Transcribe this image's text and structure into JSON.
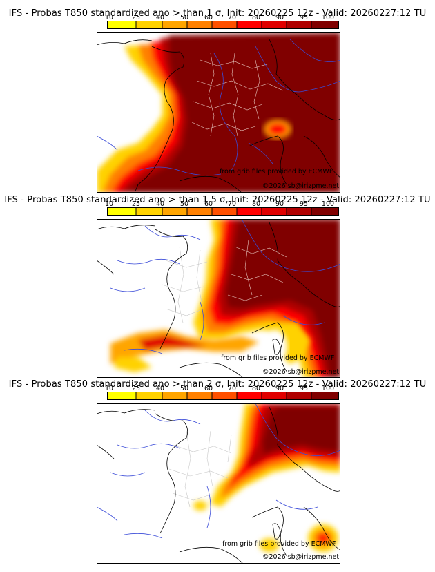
{
  "panels": [
    {
      "title": "IFS - Probas T850  standardized ano > than 1 σ, Init: 20260225 12z - Valid: 20260227:12 TU",
      "threshold_sigma": 1,
      "source_note": "from grib files provided by ECMWF",
      "copyright": "©2026 sb@irizpme.net"
    },
    {
      "title": "IFS - Probas T850  standardized ano > than 1.5 σ, Init: 20260225 12z - Valid: 20260227:12 TU",
      "threshold_sigma": 1.5,
      "source_note": "from grib files provided by ECMWF",
      "copyright": "©2026 sb@irizpme.net"
    },
    {
      "title": "IFS - Probas T850  standardized ano > than 2 σ, Init: 20260225 12z - Valid: 20260227:12 TU",
      "threshold_sigma": 2,
      "source_note": "from grib files provided by ECMWF",
      "copyright": "©2026 sb@irizpme.net"
    }
  ],
  "colorbar": {
    "ticks": [
      "10",
      "25",
      "40",
      "50",
      "60",
      "70",
      "80",
      "90",
      "95",
      "100"
    ],
    "colors": [
      "#ffff00",
      "#ffd200",
      "#ffa500",
      "#ff8000",
      "#ff5000",
      "#ff0000",
      "#e00000",
      "#b00000",
      "#800000"
    ]
  },
  "palette": {
    "land_outline": "#000000",
    "rivers": "#3a4bd8",
    "admin_borders": "#b8b8b8",
    "admin_borders_dark": "#e8c8c0",
    "max_fill": "#800000"
  }
}
